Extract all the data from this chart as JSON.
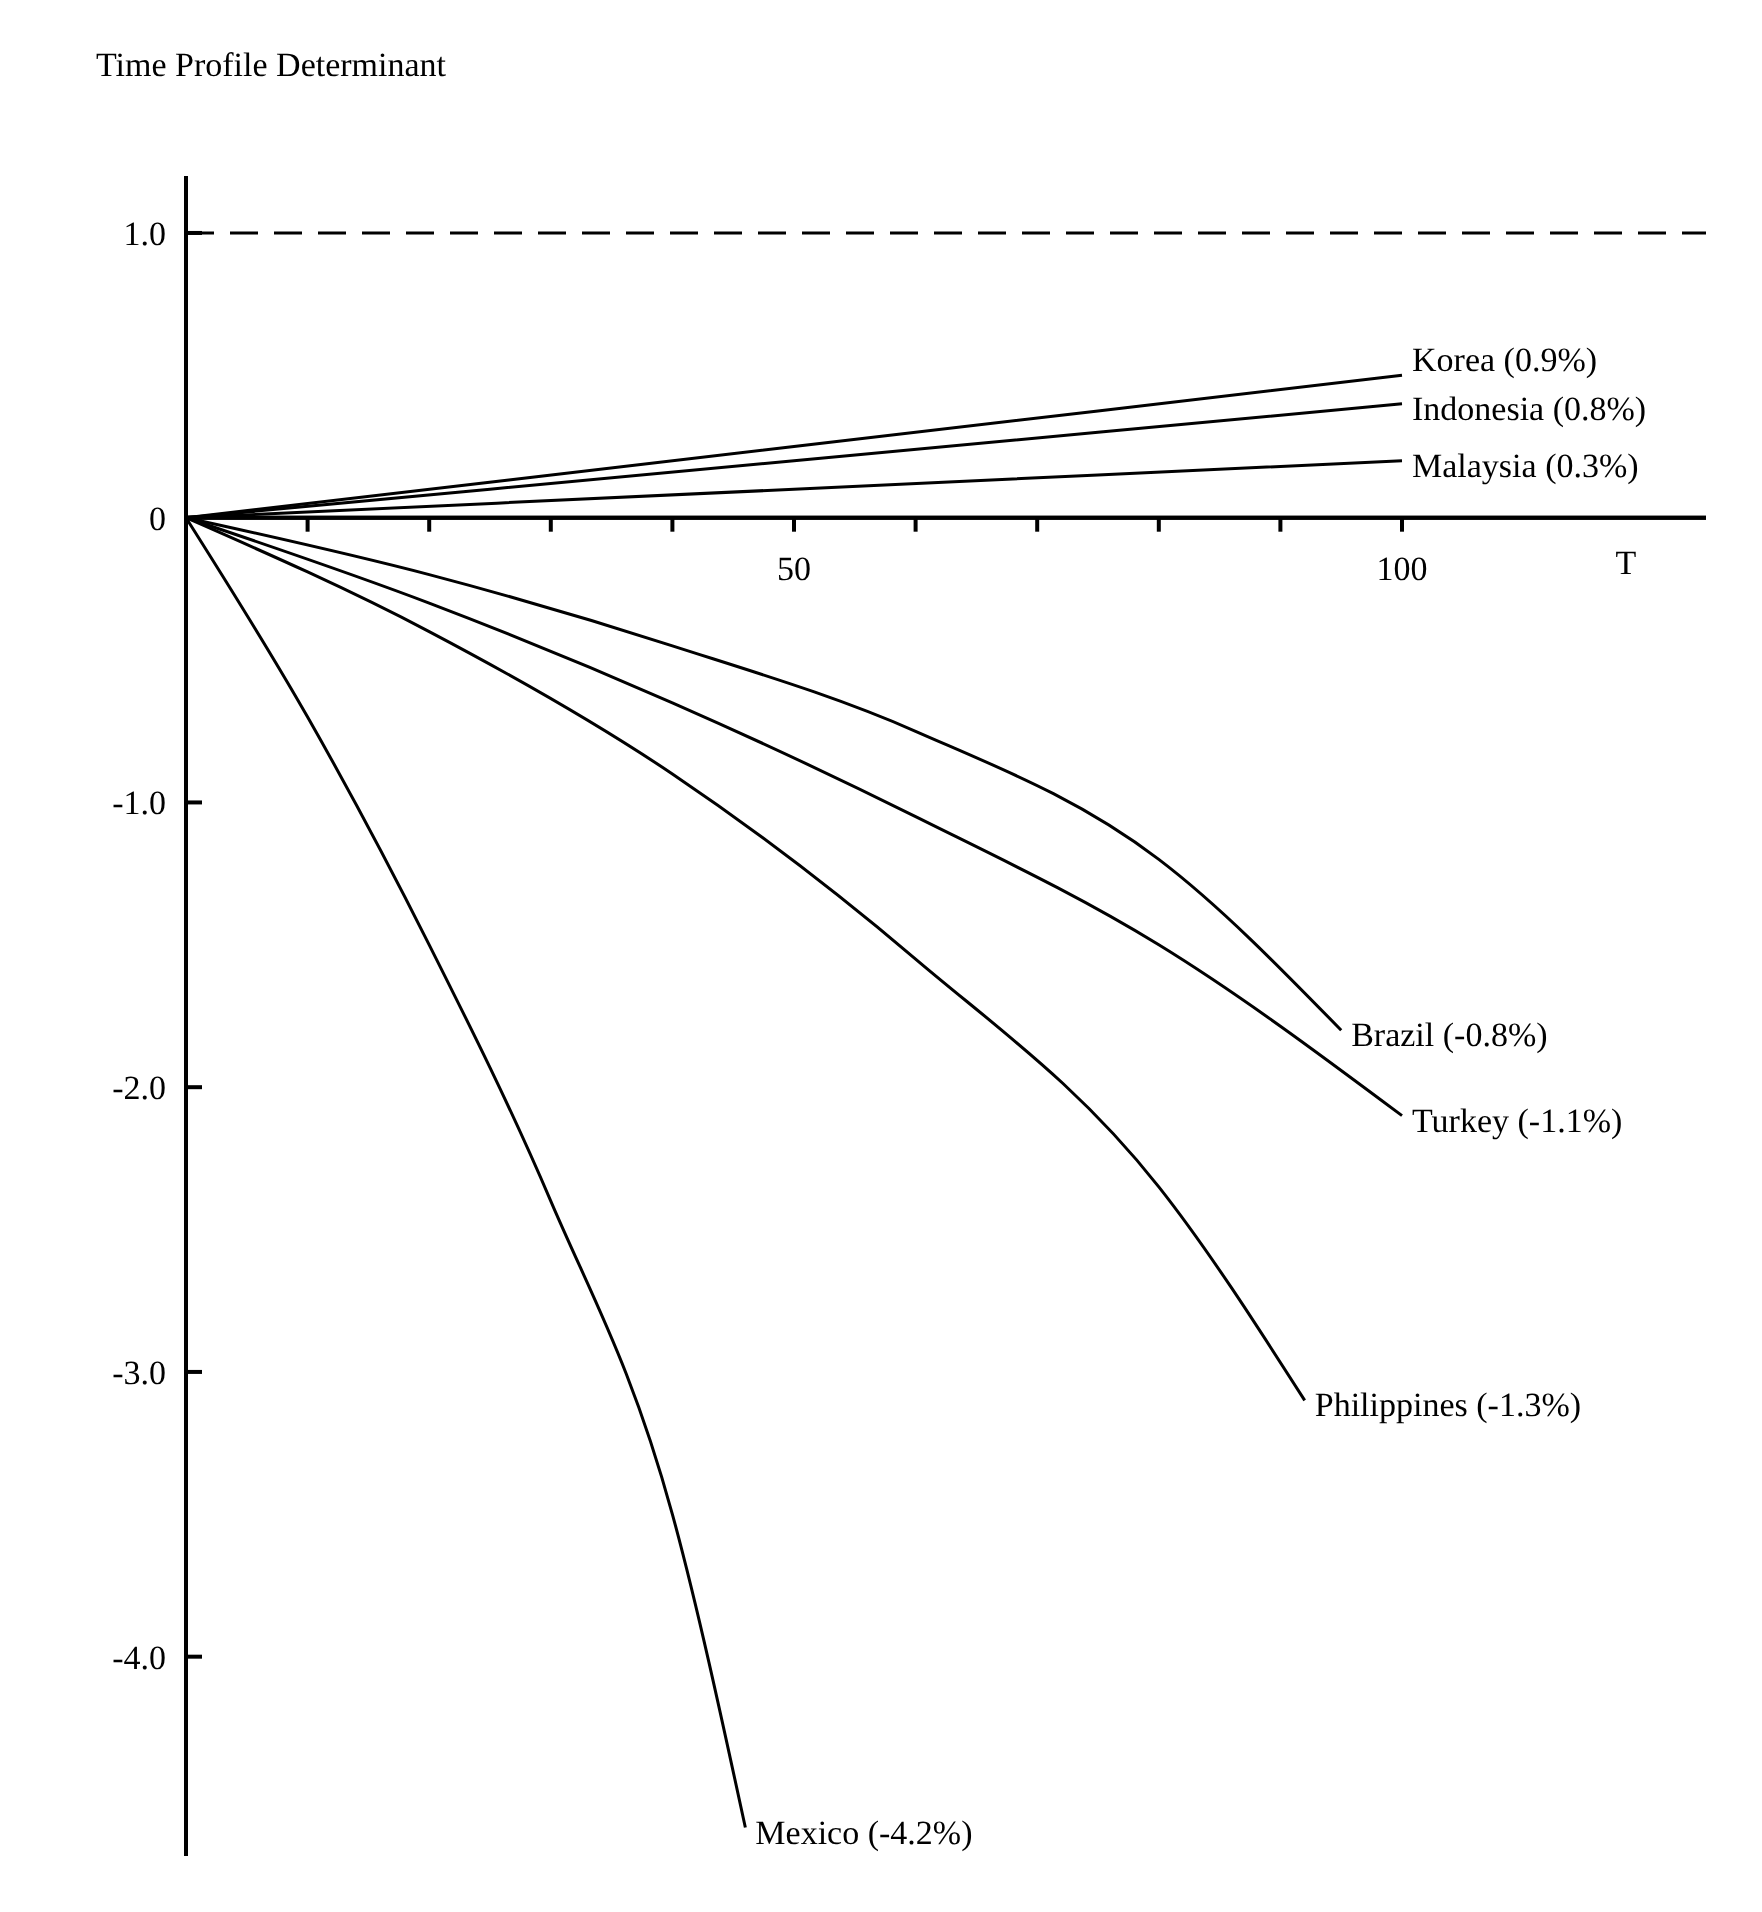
{
  "chart_data": {
    "type": "line",
    "title": "Time Profile  Determinant",
    "xlabel": "T",
    "xlim": [
      0,
      125
    ],
    "ylim": [
      -4.7,
      1.2
    ],
    "xticks": [
      {
        "value": 10,
        "label": null
      },
      {
        "value": 20,
        "label": null
      },
      {
        "value": 30,
        "label": null
      },
      {
        "value": 40,
        "label": null
      },
      50,
      {
        "value": 60,
        "label": null
      },
      {
        "value": 70,
        "label": null
      },
      {
        "value": 80,
        "label": null
      },
      {
        "value": 90,
        "label": null
      },
      100
    ],
    "yticks": [
      {
        "value": 1,
        "label": "1.0"
      },
      0,
      {
        "value": -1,
        "label": "-1.0"
      },
      {
        "value": -2,
        "label": "-2.0"
      },
      {
        "value": -3,
        "label": "-3.0"
      },
      {
        "value": -4,
        "label": "-4.0"
      }
    ],
    "grid": false,
    "legend": false,
    "marker": "none",
    "line_style": "solid",
    "ref_lines": [
      {
        "axis": "y",
        "value": 1,
        "label": null,
        "line_style": "dashed",
        "color": "#000000"
      }
    ],
    "series": [
      {
        "name": "Korea (0.9%)",
        "color": "#000000",
        "x": [
          0,
          50,
          100
        ],
        "values": [
          0,
          0.25,
          0.5
        ]
      },
      {
        "name": "Indonesia (0.8%)",
        "color": "#000000",
        "x": [
          0,
          50,
          100
        ],
        "values": [
          0,
          0.2,
          0.4
        ]
      },
      {
        "name": "Malaysia (0.3%)",
        "color": "#000000",
        "x": [
          0,
          50,
          100
        ],
        "values": [
          0,
          0.1,
          0.2
        ]
      },
      {
        "name": "Brazil (-0.8%)",
        "color": "#000000",
        "x": [
          0,
          20,
          40,
          60,
          80,
          95
        ],
        "values": [
          0,
          -0.2,
          -0.45,
          -0.75,
          -1.2,
          -1.8
        ]
      },
      {
        "name": "Turkey (-1.1%)",
        "color": "#000000",
        "x": [
          0,
          20,
          40,
          60,
          80,
          100
        ],
        "values": [
          0,
          -0.3,
          -0.65,
          -1.05,
          -1.5,
          -2.1
        ]
      },
      {
        "name": "Philippines (-1.3%)",
        "color": "#000000",
        "x": [
          0,
          20,
          40,
          60,
          80,
          92
        ],
        "values": [
          0,
          -0.4,
          -0.9,
          -1.55,
          -2.35,
          -3.1
        ]
      },
      {
        "name": "Mexico (-4.2%)",
        "color": "#000000",
        "x": [
          0,
          10,
          20,
          30,
          40,
          46
        ],
        "values": [
          0,
          -0.7,
          -1.5,
          -2.4,
          -3.5,
          -4.6
        ]
      }
    ]
  }
}
